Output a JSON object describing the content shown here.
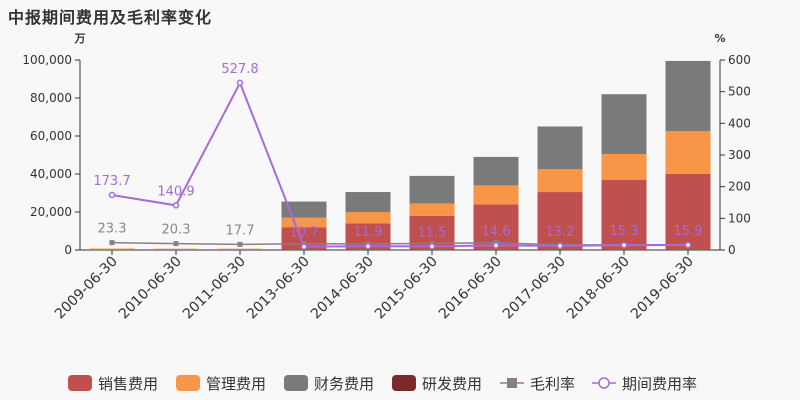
{
  "title": "中报期间费用及毛利率变化",
  "chart_data": {
    "type": "bar",
    "stacked": true,
    "left_unit": "万",
    "right_unit": "%",
    "categories": [
      "2009-06-30",
      "2010-06-30",
      "2011-06-30",
      "2013-06-30",
      "2014-06-30",
      "2015-06-30",
      "2016-06-30",
      "2017-06-30",
      "2018-06-30",
      "2019-06-30"
    ],
    "y_left_ticks": [
      "0",
      "20,000",
      "40,000",
      "60,000",
      "80,000",
      "100,000"
    ],
    "y_right_ticks": [
      "0",
      "100",
      "200",
      "300",
      "400",
      "500",
      "600"
    ],
    "ylim_left": [
      0,
      100000
    ],
    "ylim_right": [
      0,
      600
    ],
    "series": [
      {
        "name": "销售费用",
        "color": "#c0504d",
        "values": [
          400,
          300,
          300,
          12000,
          14000,
          18000,
          24000,
          30500,
          37000,
          40000
        ]
      },
      {
        "name": "管理费用",
        "color": "#f79646",
        "values": [
          400,
          400,
          400,
          5000,
          6000,
          6500,
          10000,
          12000,
          13500,
          22500
        ]
      },
      {
        "name": "财务费用",
        "color": "#7a7a7a",
        "values": [
          0,
          0,
          0,
          8500,
          10500,
          14500,
          15000,
          22500,
          31500,
          37000
        ]
      },
      {
        "name": "研发费用",
        "color": "#7b2a2a",
        "values": [
          0,
          0,
          0,
          0,
          0,
          0,
          0,
          0,
          0,
          0
        ]
      }
    ],
    "lines": [
      {
        "name": "毛利率",
        "color": "#8c7c8c",
        "marker": "square",
        "values": [
          23.3,
          20.3,
          17.7,
          19.9,
          19.3,
          20.6,
          23.2,
          16.1,
          16.1,
          16.4
        ],
        "labels": [
          "23.3",
          "20.3",
          "17.7",
          "",
          "",
          "",
          "",
          "",
          "",
          ""
        ]
      },
      {
        "name": "期间费用率",
        "color": "#a86ad8",
        "marker": "circle",
        "values": [
          173.7,
          140.9,
          527.8,
          10.7,
          11.9,
          11.5,
          14.6,
          13.2,
          15.3,
          15.9
        ],
        "labels": [
          "173.7",
          "140.9",
          "527.8",
          "10.7",
          "11.9",
          "11.5",
          "14.6",
          "13.2",
          "15.3",
          "15.9"
        ]
      }
    ]
  }
}
